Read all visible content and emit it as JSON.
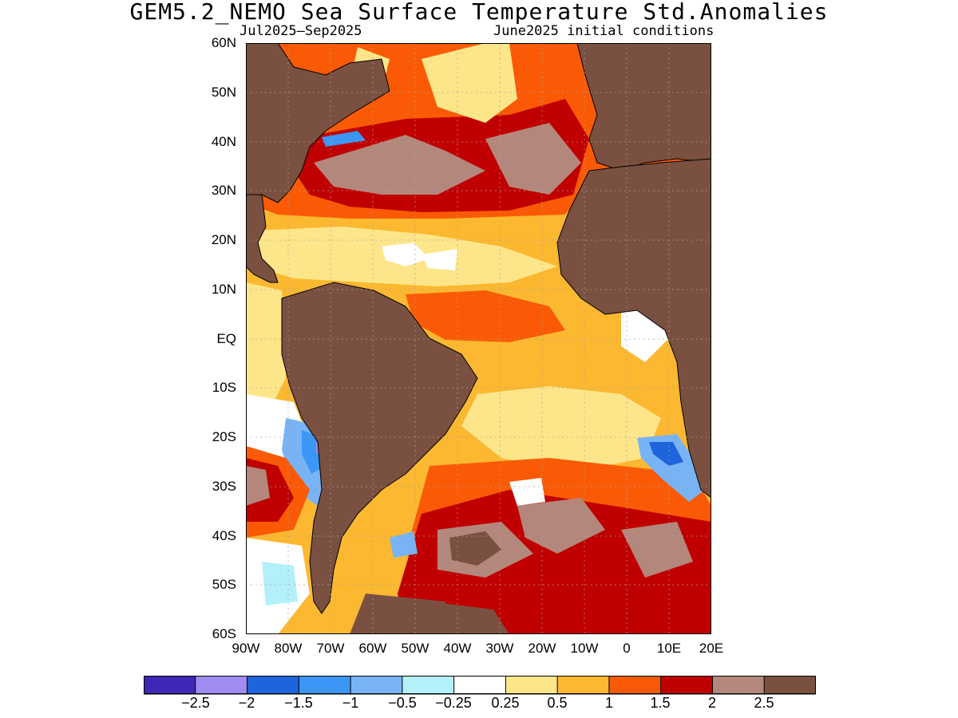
{
  "title": "GEM5.2_NEMO Sea Surface Temperature Std.Anomalies",
  "subtitle_left": "Jul2025—Sep2025",
  "subtitle_right": "June2025 initial conditions",
  "lat_labels": [
    "60N",
    "50N",
    "40N",
    "30N",
    "20N",
    "10N",
    "EQ",
    "10S",
    "20S",
    "30S",
    "40S",
    "50S",
    "60S"
  ],
  "lon_labels": [
    "90W",
    "80W",
    "70W",
    "60W",
    "50W",
    "40W",
    "30W",
    "20W",
    "10W",
    "0",
    "10E",
    "20E"
  ],
  "colorbar": {
    "colors": [
      "#3c28b4",
      "#a08cf0",
      "#1e64dc",
      "#3c96f5",
      "#78b4f5",
      "#b4f0fa",
      "#ffffff",
      "#fde68a",
      "#fbb830",
      "#fa5a05",
      "#c00000",
      "#b4877c",
      "#7a5040"
    ],
    "labels": [
      "−2.5",
      "−2",
      "−1.5",
      "−1",
      "−0.5",
      "−0.25",
      "0.25",
      "0.5",
      "1",
      "1.5",
      "2",
      "2.5"
    ]
  },
  "colors": {
    "land": "#7a5040",
    "ocean_warm": "#fbb830",
    "frame": "#000000"
  }
}
